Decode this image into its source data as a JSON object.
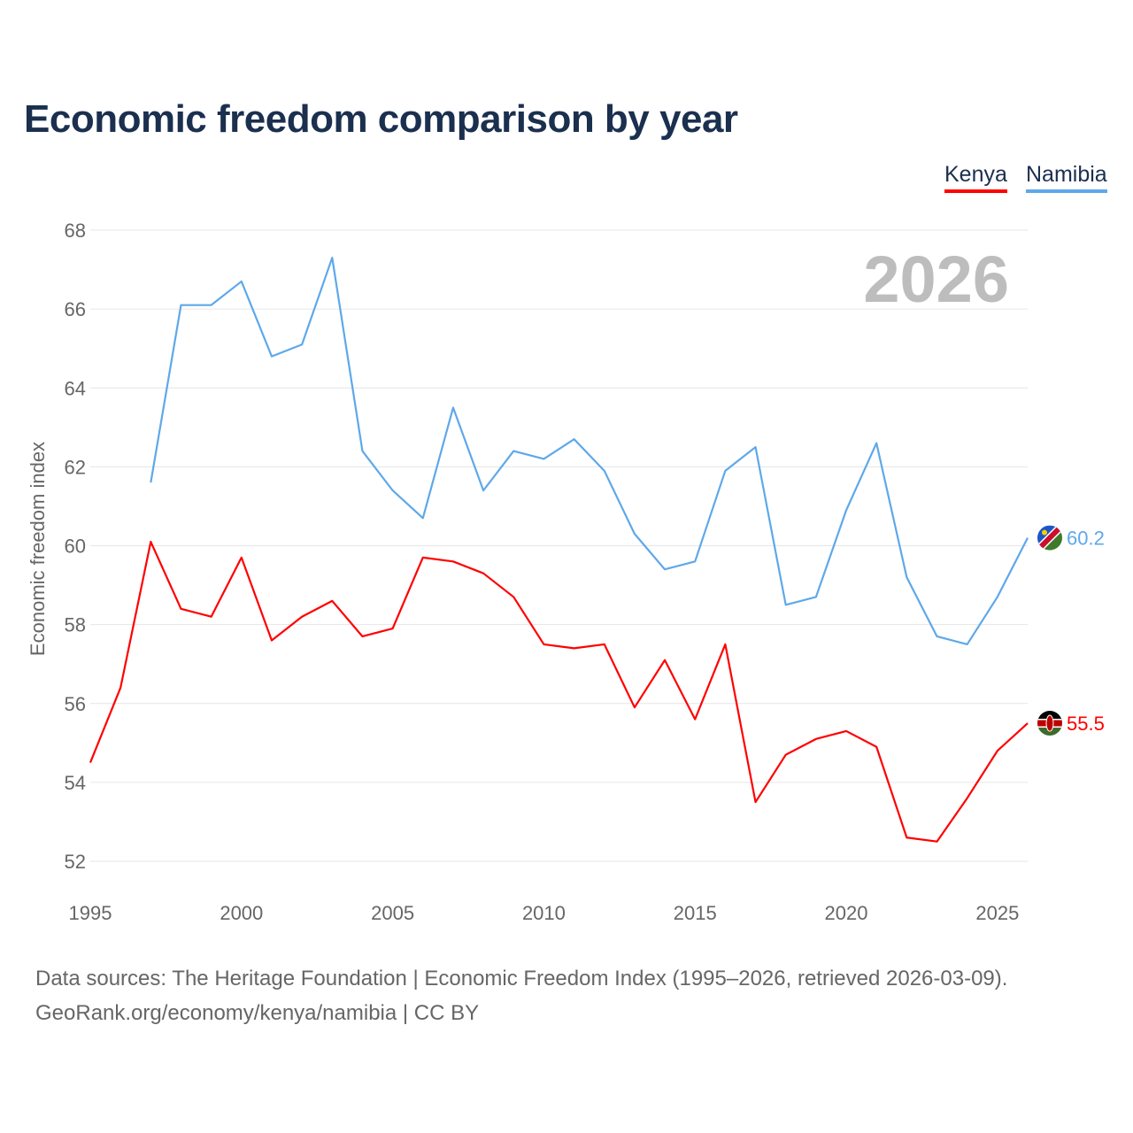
{
  "chart_data": {
    "type": "line",
    "title": "Economic freedom comparison by year",
    "xlabel": "",
    "ylabel": "Economic freedom index",
    "xlim": [
      1995,
      2026
    ],
    "ylim": [
      52,
      68
    ],
    "yticks": [
      52,
      54,
      56,
      58,
      60,
      62,
      64,
      66,
      68
    ],
    "xticks": [
      1995,
      2000,
      2005,
      2010,
      2015,
      2020,
      2025
    ],
    "grid": true,
    "legend_position": "top-right",
    "year_watermark": "2026",
    "series": [
      {
        "name": "Kenya",
        "color": "#ff0000",
        "end_label": "55.5",
        "x": [
          1995,
          1996,
          1997,
          1998,
          1999,
          2000,
          2001,
          2002,
          2003,
          2004,
          2005,
          2006,
          2007,
          2008,
          2009,
          2010,
          2011,
          2012,
          2013,
          2014,
          2015,
          2016,
          2017,
          2018,
          2019,
          2020,
          2021,
          2022,
          2023,
          2024,
          2025,
          2026
        ],
        "values": [
          54.5,
          56.4,
          60.1,
          58.4,
          58.2,
          59.7,
          57.6,
          58.2,
          58.6,
          57.7,
          57.9,
          59.7,
          59.6,
          59.3,
          58.7,
          57.5,
          57.4,
          57.5,
          55.9,
          57.1,
          55.6,
          57.5,
          53.5,
          54.7,
          55.1,
          55.3,
          54.9,
          52.6,
          52.5,
          53.6,
          54.8,
          55.5
        ]
      },
      {
        "name": "Namibia",
        "color": "#5ea8ea",
        "end_label": "60.2",
        "x": [
          1997,
          1998,
          1999,
          2000,
          2001,
          2002,
          2003,
          2004,
          2005,
          2006,
          2007,
          2008,
          2009,
          2010,
          2011,
          2012,
          2013,
          2014,
          2015,
          2016,
          2017,
          2018,
          2019,
          2020,
          2021,
          2022,
          2023,
          2024,
          2025,
          2026
        ],
        "values": [
          61.6,
          66.1,
          66.1,
          66.7,
          64.8,
          65.1,
          67.3,
          62.4,
          61.4,
          60.7,
          63.5,
          61.4,
          62.4,
          62.2,
          62.7,
          61.9,
          60.3,
          59.4,
          59.6,
          61.9,
          62.5,
          58.5,
          58.7,
          60.9,
          62.6,
          59.2,
          57.7,
          57.5,
          58.7,
          60.2
        ]
      }
    ]
  },
  "footer": {
    "line1": "Data sources: The Heritage Foundation | Economic Freedom Index (1995–2026, retrieved 2026-03-09).",
    "line2": "GeoRank.org/economy/kenya/namibia | CC BY"
  }
}
